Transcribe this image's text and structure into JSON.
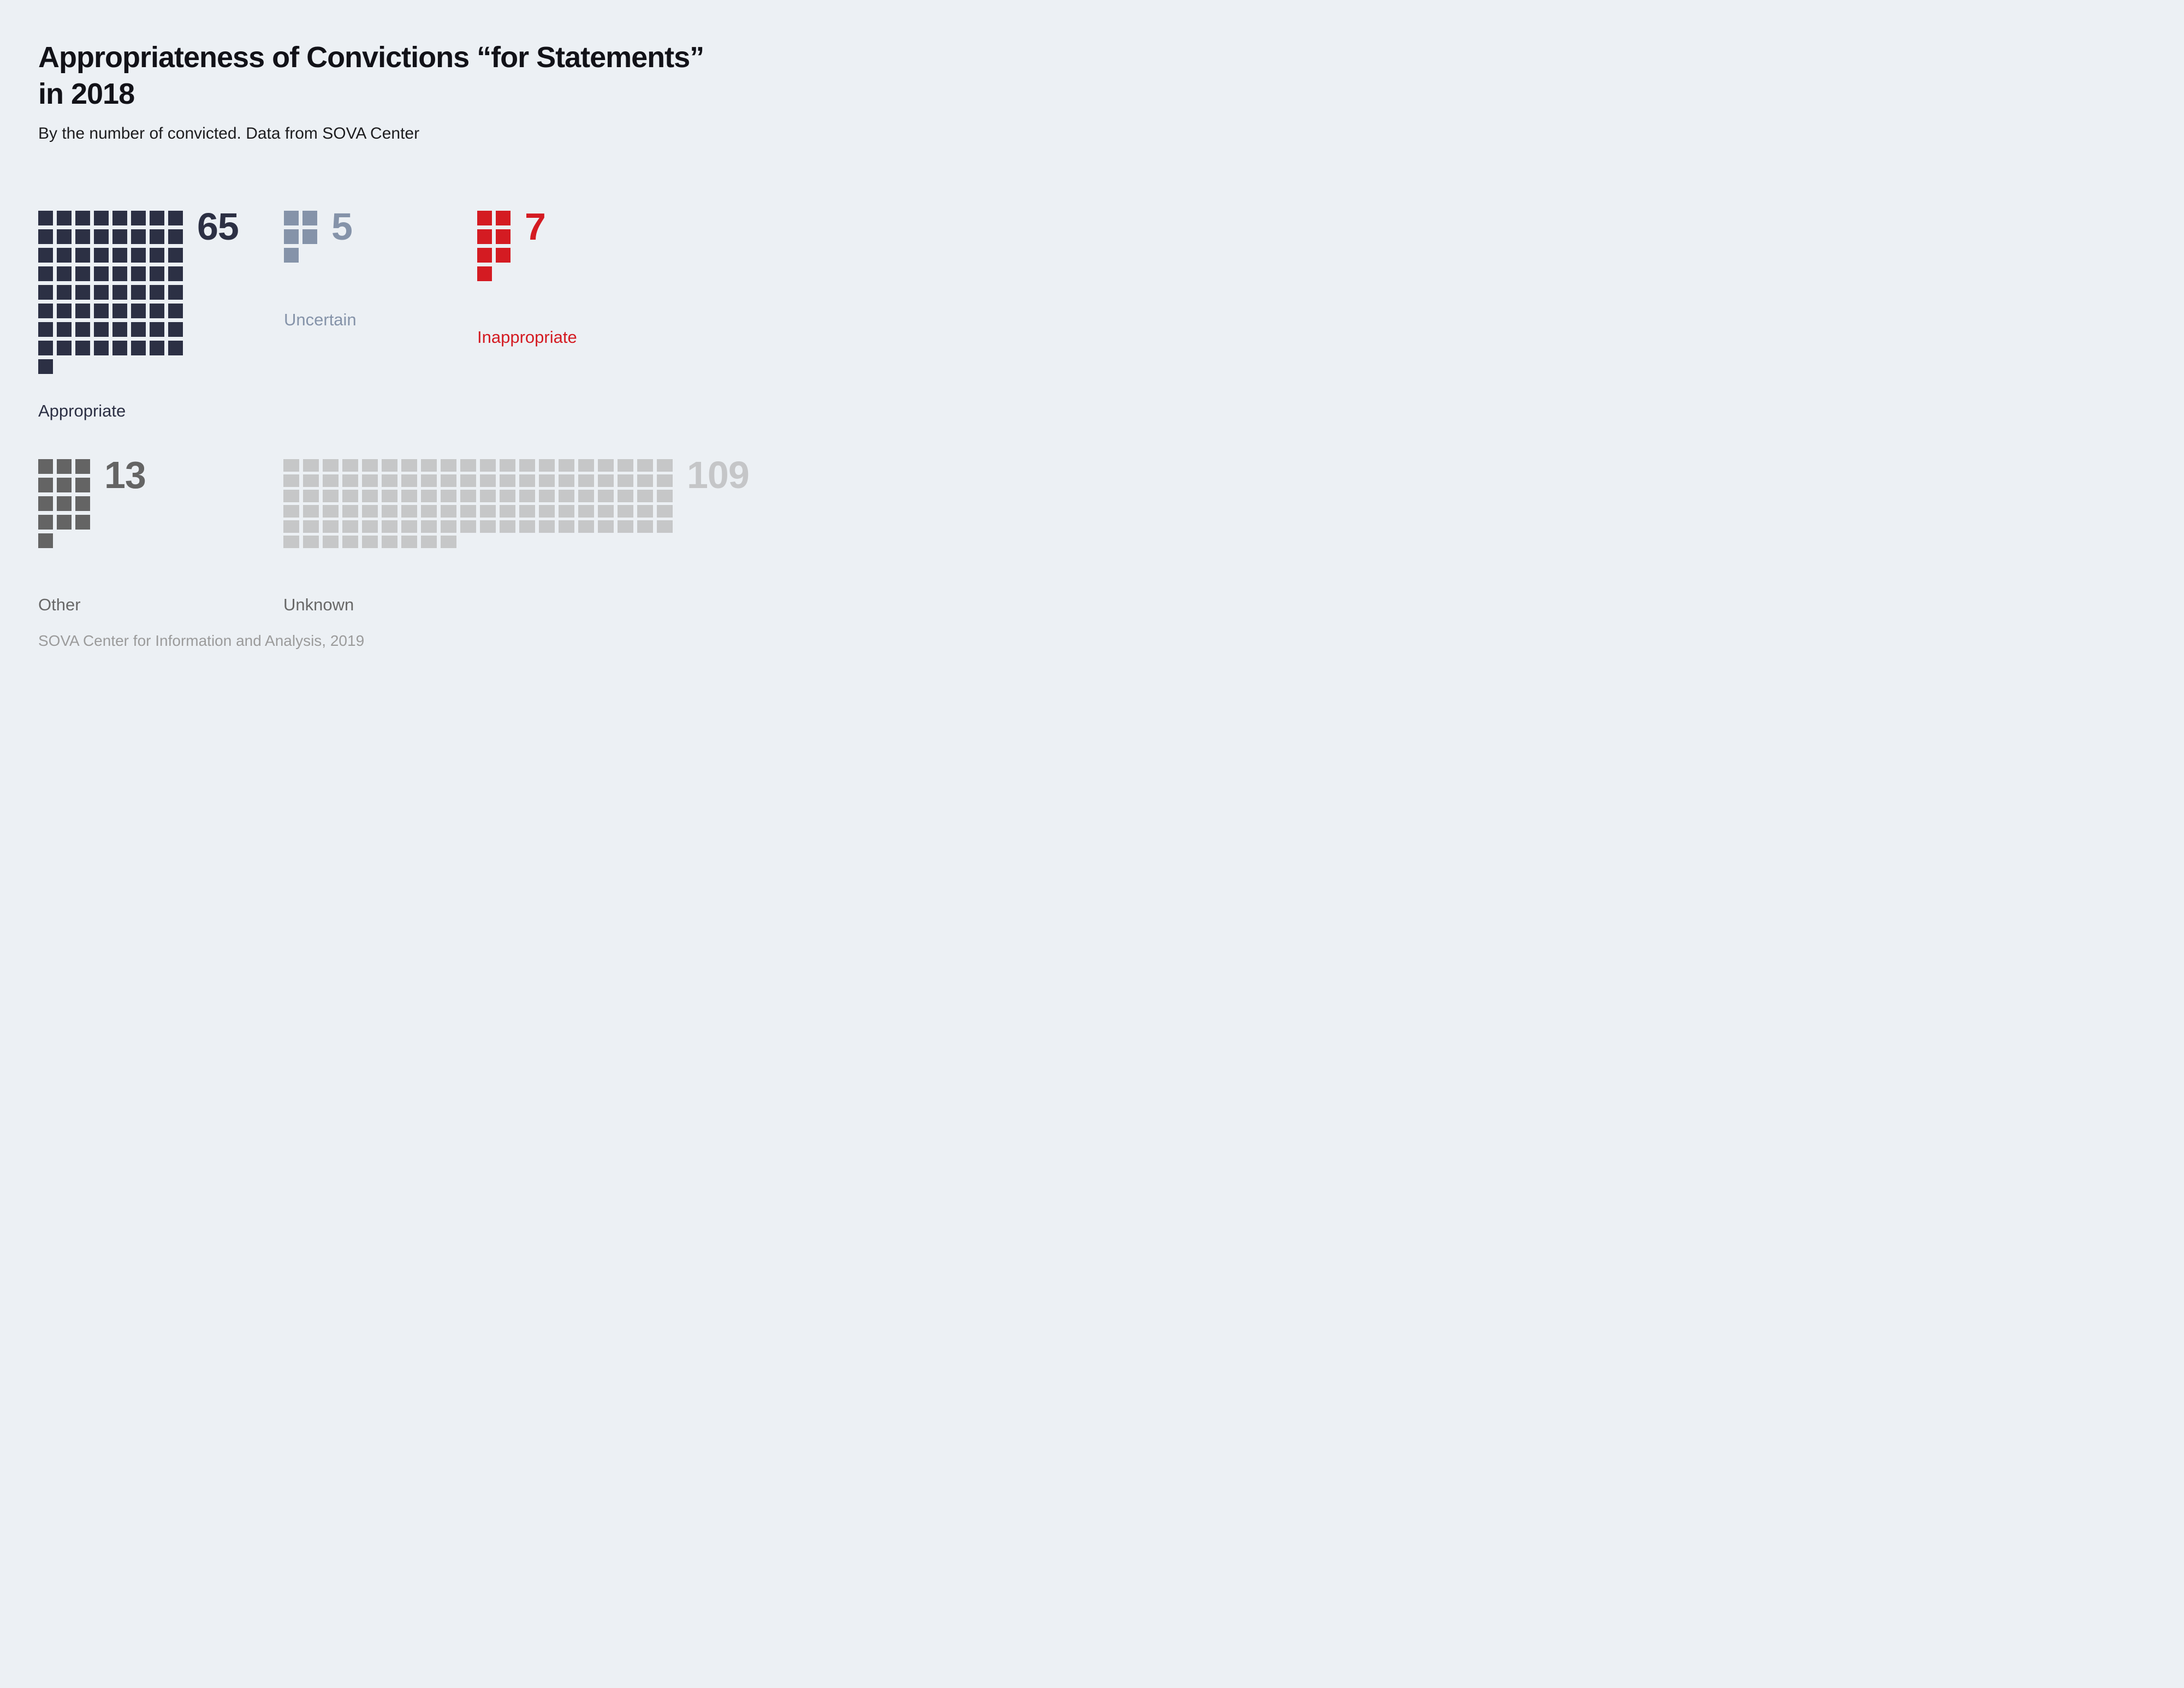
{
  "page": {
    "title_line1": "Appropriateness of Convictions “for Statements”",
    "title_line2": "in 2018",
    "subtitle": "By the number of convicted. Data from SOVA Center",
    "footer": "SOVA Center for Information and Analysis, 2019",
    "background_color": "#ecf0f4"
  },
  "chart_data": {
    "type": "waffle",
    "title": "Appropriateness of Convictions “for Statements” in 2018",
    "subtitle": "By the number of convicted. Data from SOVA Center",
    "source": "SOVA Center for Information and Analysis, 2019",
    "square_unit": "1 convicted person",
    "legend_position": "below each grid",
    "categories": [
      "Appropriate",
      "Uncertain",
      "Inappropriate",
      "Other",
      "Unknown"
    ],
    "values": [
      65,
      5,
      7,
      13,
      109
    ],
    "blocks": [
      {
        "label": "Appropriate",
        "value": 65,
        "value_text": "65",
        "columns": 8,
        "color": "#2c3044",
        "label_color": "#2c3044",
        "number_color": "#2c3044"
      },
      {
        "label": "Uncertain",
        "value": 5,
        "value_text": "5",
        "columns": 2,
        "color": "#8593a9",
        "label_color": "#8593a9",
        "number_color": "#8593a9"
      },
      {
        "label": "Inappropriate",
        "value": 7,
        "value_text": "7",
        "columns": 2,
        "color": "#d41b22",
        "label_color": "#d41b22",
        "number_color": "#d41b22"
      },
      {
        "label": "Other",
        "value": 13,
        "value_text": "13",
        "columns": 3,
        "color": "#646464",
        "label_color": "#686868",
        "number_color": "#646464"
      },
      {
        "label": "Unknown",
        "value": 109,
        "value_text": "109",
        "columns": 20,
        "color": "#c6c7c8",
        "label_color": "#686868",
        "number_color": "#c5c6c8"
      }
    ]
  }
}
